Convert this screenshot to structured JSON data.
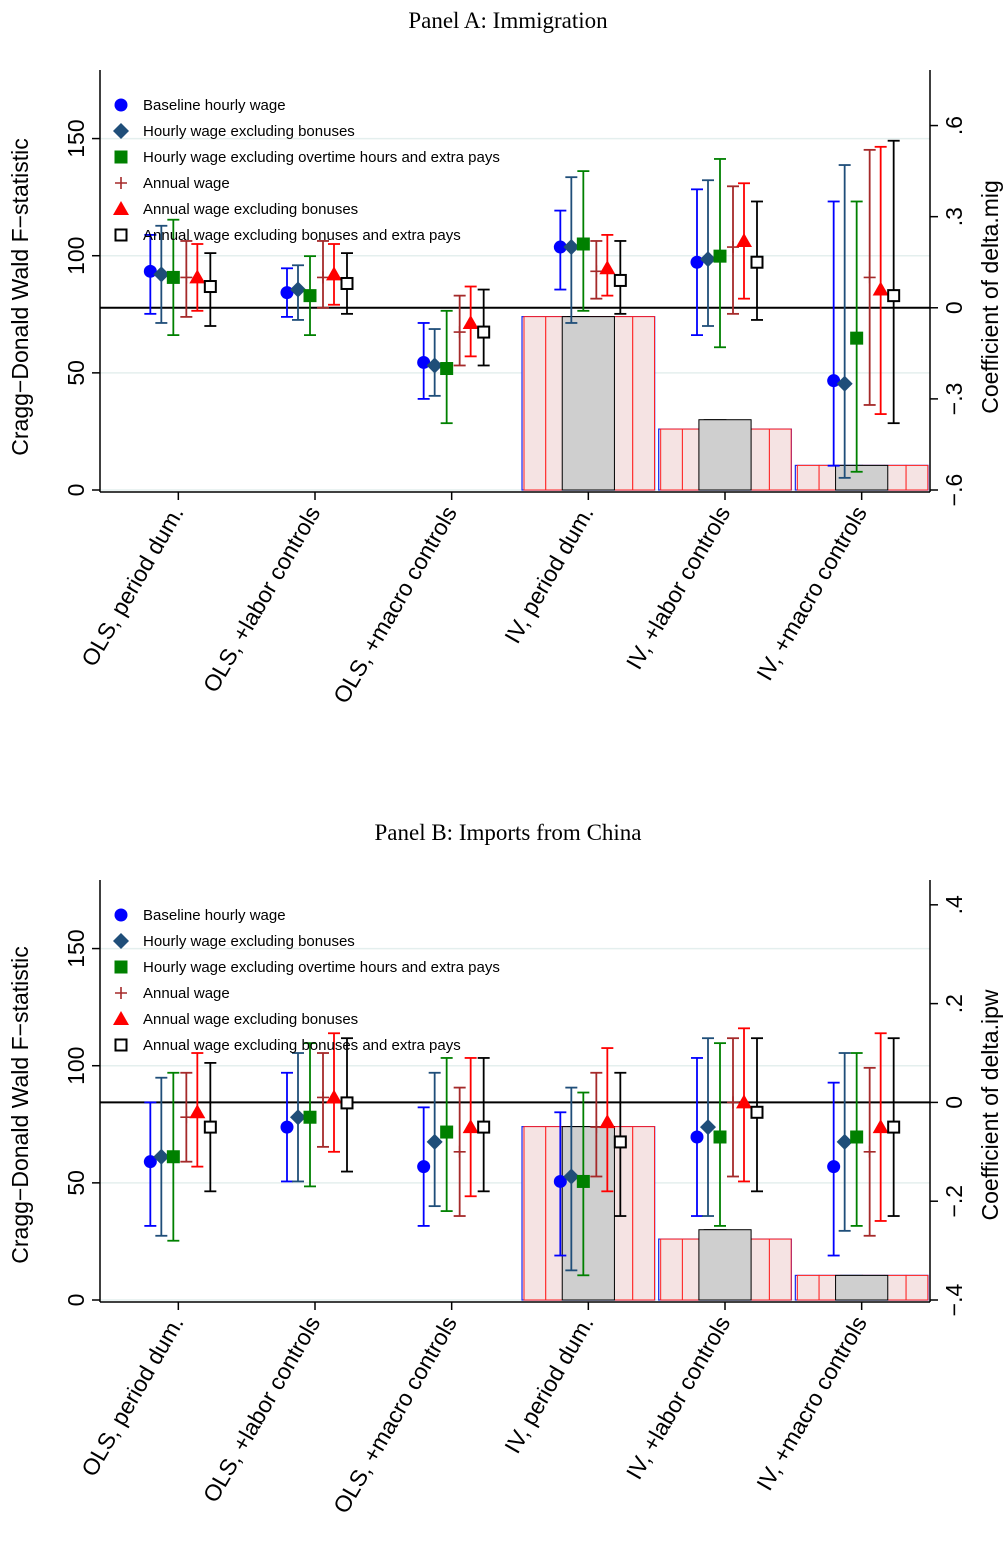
{
  "chart_data": [
    {
      "type": "bar",
      "title": "Panel A: Immigration",
      "ylabel": "Cragg−Donald Wald F−statistic",
      "y2label": "Coefficient of delta.mig",
      "categories": [
        "OLS, period dum.",
        "OLS, +labor controls",
        "OLS, +macro controls",
        "IV, period dum.",
        "IV, +labor controls",
        "IV, +macro controls"
      ],
      "ylim": [
        0,
        175
      ],
      "yticks": [
        0,
        50,
        100,
        150
      ],
      "y2lim": [
        -0.6,
        0.75
      ],
      "y2ticks": [
        -0.6,
        -0.3,
        0,
        0.3,
        0.6
      ],
      "y2ticklabels": [
        "−.6",
        "−.3",
        "0",
        ".3",
        ".6"
      ],
      "bars": [
        {
          "category": "IV, period dum.",
          "value": 74
        },
        {
          "category": "IV, +labor controls",
          "value": 26
        },
        {
          "category": "IV, +macro controls",
          "value": 10.5
        }
      ],
      "inner_bar_max": [
        74,
        30,
        10.5
      ],
      "series": [
        {
          "name": "Baseline hourly wage",
          "color": "#0000ff",
          "marker": "circle",
          "points": [
            0.12,
            0.05,
            -0.18,
            0.2,
            0.15,
            -0.24
          ],
          "ci_low": [
            -0.02,
            -0.03,
            -0.3,
            0.06,
            -0.09,
            -0.52
          ],
          "ci_high": [
            0.24,
            0.13,
            -0.05,
            0.32,
            0.39,
            0.35
          ]
        },
        {
          "name": "Hourly wage excluding bonuses",
          "color": "#1f4e79",
          "marker": "diamond",
          "points": [
            0.11,
            0.06,
            -0.19,
            0.2,
            0.16,
            -0.25
          ],
          "ci_low": [
            -0.05,
            -0.04,
            -0.29,
            -0.05,
            -0.06,
            -0.56
          ],
          "ci_high": [
            0.27,
            0.14,
            -0.07,
            0.43,
            0.42,
            0.47
          ]
        },
        {
          "name": "Hourly wage excluding overtime hours and extra pays",
          "color": "#008000",
          "marker": "square",
          "points": [
            0.1,
            0.04,
            -0.2,
            0.21,
            0.17,
            -0.1
          ],
          "ci_low": [
            -0.09,
            -0.09,
            -0.38,
            -0.01,
            -0.13,
            -0.54
          ],
          "ci_high": [
            0.29,
            0.17,
            -0.01,
            0.45,
            0.49,
            0.35
          ]
        },
        {
          "name": "Annual wage",
          "color": "#a52a2a",
          "marker": "plus",
          "points": [
            0.1,
            0.1,
            -0.08,
            0.12,
            0.2,
            0.1
          ],
          "ci_low": [
            -0.03,
            0.0,
            -0.19,
            0.03,
            -0.02,
            -0.32
          ],
          "ci_high": [
            0.22,
            0.22,
            0.04,
            0.22,
            0.4,
            0.52
          ]
        },
        {
          "name": "Annual wage excluding bonuses",
          "color": "#ff0000",
          "marker": "triangle",
          "points": [
            0.1,
            0.11,
            -0.05,
            0.13,
            0.22,
            0.06
          ],
          "ci_low": [
            -0.01,
            0.01,
            -0.16,
            0.04,
            0.03,
            -0.35
          ],
          "ci_high": [
            0.21,
            0.21,
            0.07,
            0.24,
            0.41,
            0.53
          ]
        },
        {
          "name": "Annual wage excluding bonuses and extra pays",
          "color": "#000000",
          "marker": "hollow-square",
          "points": [
            0.07,
            0.08,
            -0.08,
            0.09,
            0.15,
            0.04
          ],
          "ci_low": [
            -0.06,
            -0.02,
            -0.19,
            -0.02,
            -0.04,
            -0.38
          ],
          "ci_high": [
            0.18,
            0.18,
            0.06,
            0.22,
            0.35,
            0.55
          ]
        }
      ],
      "legend": "top-left",
      "hline_y2": 0
    },
    {
      "type": "bar",
      "title": "Panel B: Imports from China",
      "ylabel": "Cragg−Donald Wald F−statistic",
      "y2label": "Coefficient of delta.ipw",
      "categories": [
        "OLS, period dum.",
        "OLS, +labor controls",
        "OLS, +macro controls",
        "IV, period dum.",
        "IV, +labor controls",
        "IV, +macro controls"
      ],
      "ylim": [
        0,
        175
      ],
      "yticks": [
        0,
        50,
        100,
        150
      ],
      "y2lim": [
        -0.4,
        0.43
      ],
      "y2ticks": [
        -0.4,
        -0.2,
        0,
        0.2,
        0.4
      ],
      "y2ticklabels": [
        "−.4",
        "−.2",
        "0",
        ".2",
        ".4"
      ],
      "bars": [
        {
          "category": "IV, period dum.",
          "value": 74
        },
        {
          "category": "IV, +labor controls",
          "value": 26
        },
        {
          "category": "IV, +macro controls",
          "value": 10.5
        }
      ],
      "inner_bar_max": [
        74,
        30,
        10.5
      ],
      "series": [
        {
          "name": "Baseline hourly wage",
          "color": "#0000ff",
          "marker": "circle",
          "points": [
            -0.12,
            -0.05,
            -0.13,
            -0.16,
            -0.07,
            -0.13
          ],
          "ci_low": [
            -0.25,
            -0.16,
            -0.25,
            -0.31,
            -0.23,
            -0.31
          ],
          "ci_high": [
            0.0,
            0.06,
            -0.01,
            -0.02,
            0.09,
            0.04
          ]
        },
        {
          "name": "Hourly wage excluding bonuses",
          "color": "#1f4e79",
          "marker": "diamond",
          "points": [
            -0.11,
            -0.03,
            -0.08,
            -0.15,
            -0.05,
            -0.08
          ],
          "ci_low": [
            -0.27,
            -0.16,
            -0.21,
            -0.34,
            -0.23,
            -0.26
          ],
          "ci_high": [
            0.05,
            0.1,
            0.06,
            0.03,
            0.13,
            0.1
          ]
        },
        {
          "name": "Hourly wage excluding overtime hours and extra pays",
          "color": "#008000",
          "marker": "square",
          "points": [
            -0.11,
            -0.03,
            -0.06,
            -0.16,
            -0.07,
            -0.07
          ],
          "ci_low": [
            -0.28,
            -0.17,
            -0.22,
            -0.35,
            -0.25,
            -0.25
          ],
          "ci_high": [
            0.06,
            0.12,
            0.09,
            0.02,
            0.12,
            0.1
          ]
        },
        {
          "name": "Annual wage",
          "color": "#a52a2a",
          "marker": "plus",
          "points": [
            -0.03,
            0.01,
            -0.1,
            -0.05,
            0.0,
            -0.1
          ],
          "ci_low": [
            -0.12,
            -0.09,
            -0.23,
            -0.15,
            -0.15,
            -0.27
          ],
          "ci_high": [
            0.06,
            0.1,
            0.03,
            0.06,
            0.13,
            0.07
          ]
        },
        {
          "name": "Annual wage excluding bonuses",
          "color": "#ff0000",
          "marker": "triangle",
          "points": [
            -0.02,
            0.01,
            -0.05,
            -0.04,
            0.0,
            -0.05
          ],
          "ci_low": [
            -0.13,
            -0.1,
            -0.19,
            -0.18,
            -0.16,
            -0.24
          ],
          "ci_high": [
            0.1,
            0.14,
            0.09,
            0.11,
            0.15,
            0.14
          ]
        },
        {
          "name": "Annual wage excluding bonuses and extra pays",
          "color": "#000000",
          "marker": "hollow-square",
          "points": [
            -0.05,
            -0.001,
            -0.05,
            -0.08,
            -0.02,
            -0.05
          ],
          "ci_low": [
            -0.18,
            -0.14,
            -0.18,
            -0.23,
            -0.18,
            -0.23
          ],
          "ci_high": [
            0.08,
            0.13,
            0.09,
            0.06,
            0.13,
            0.13
          ]
        }
      ],
      "legend": "top-left",
      "hline_y2": 0
    }
  ]
}
